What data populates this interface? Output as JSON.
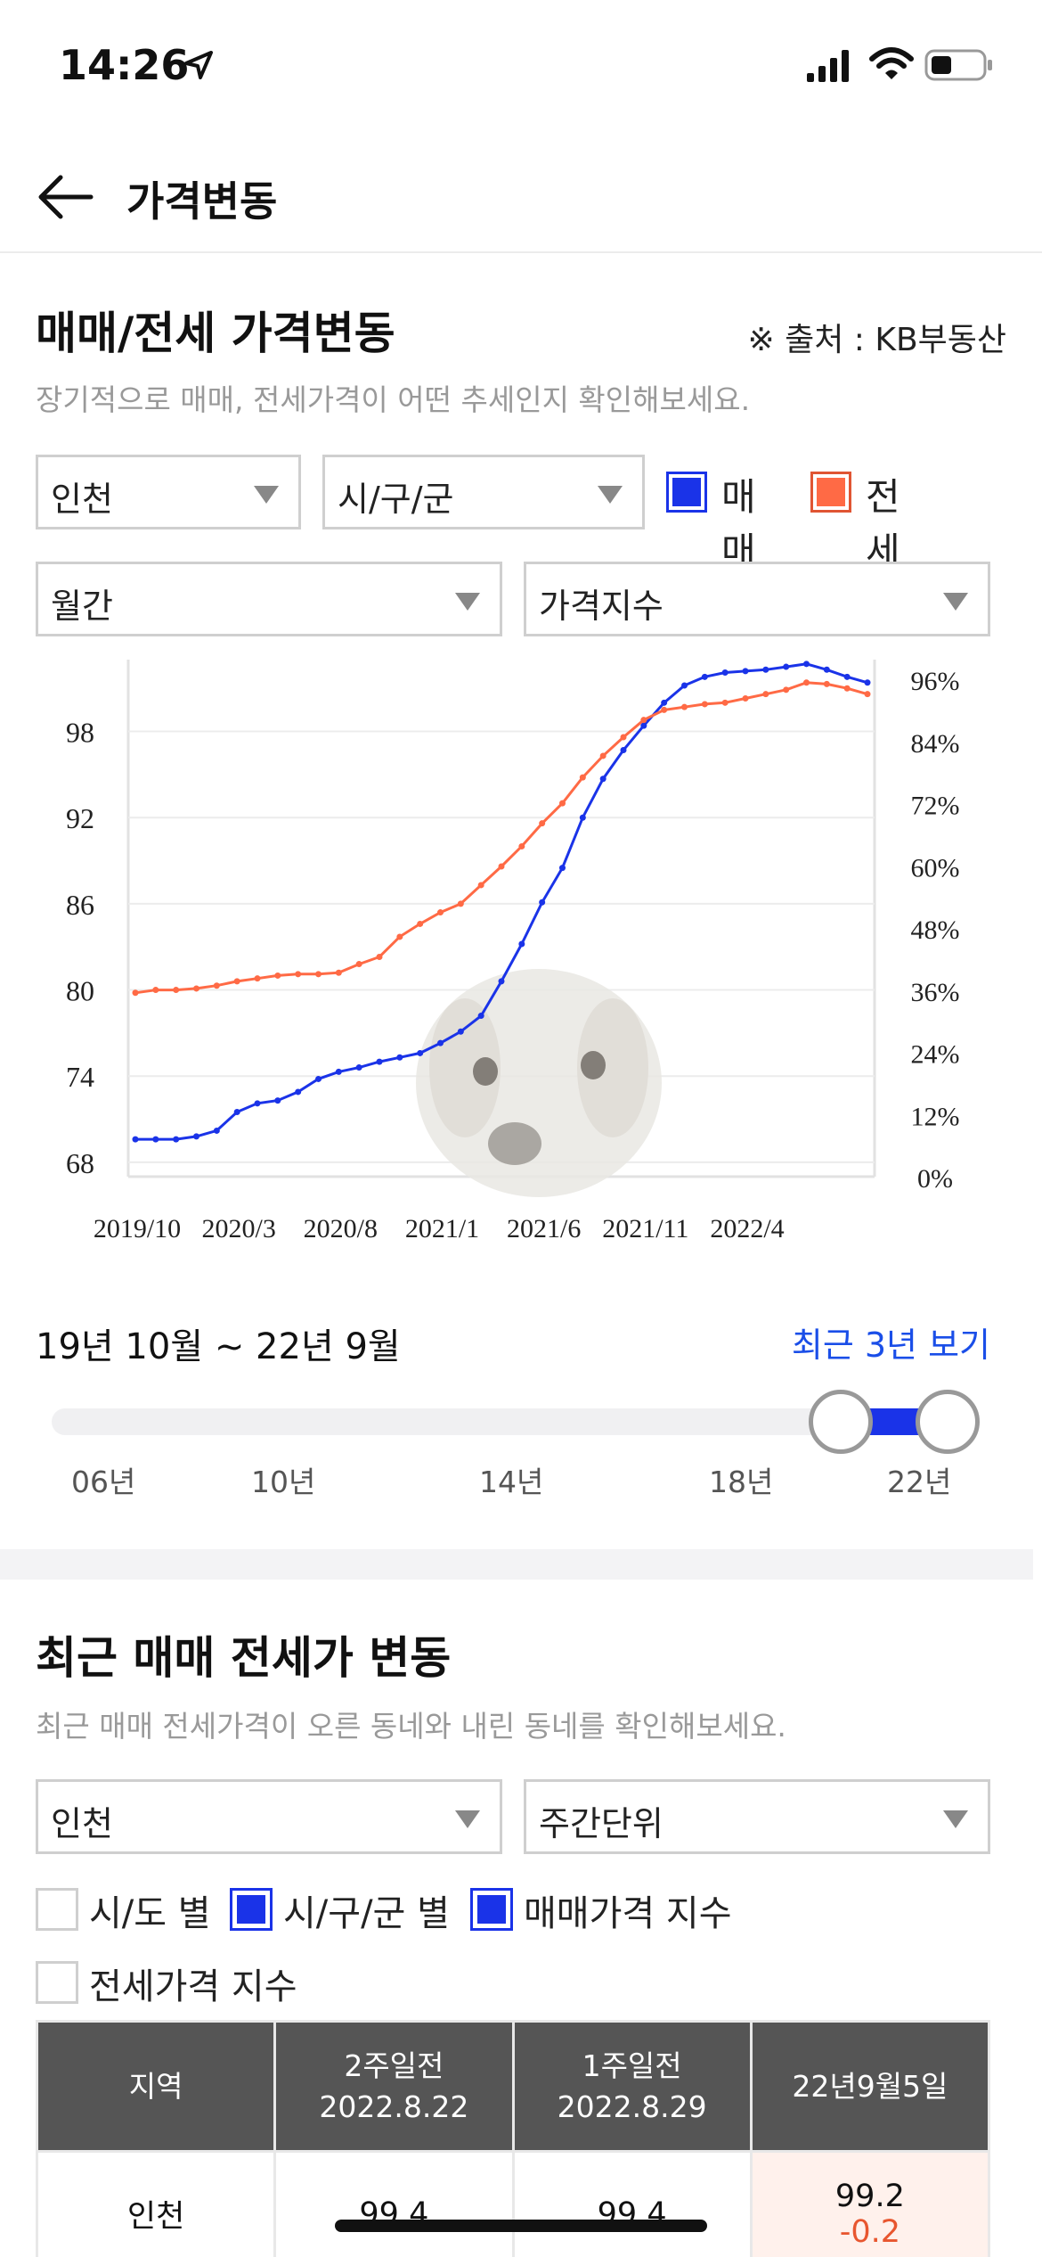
{
  "status": {
    "time": "14:26"
  },
  "header": {
    "title": "가격변동"
  },
  "section1": {
    "title": "매매/전세 가격변동",
    "source": "※ 출처 : KB부동산",
    "desc": "장기적으로 매매, 전세가격이 어떤 추세인지 확인해보세요.",
    "region_select": "인천",
    "district_select": "시/구/군",
    "legend": [
      {
        "label": "매매",
        "color": "#1a33e8"
      },
      {
        "label": "전세",
        "color": "#ff6a45"
      }
    ],
    "period_select": "월간",
    "metric_select": "가격지수",
    "range_label": "19년 10월 ~ 22년 9월",
    "recent_link": "최근 3년 보기",
    "slider_years": [
      "06년",
      "10년",
      "14년",
      "18년",
      "22년"
    ]
  },
  "chart_data": {
    "type": "line",
    "x_tick_labels": [
      "2019/10",
      "2020/3",
      "2020/8",
      "2021/1",
      "2021/6",
      "2021/11",
      "2022/4"
    ],
    "y_left_ticks": [
      "98",
      "92",
      "86",
      "80",
      "74",
      "68"
    ],
    "y_right_ticks": [
      "96%",
      "84%",
      "72%",
      "60%",
      "48%",
      "36%",
      "24%",
      "12%",
      "0%"
    ],
    "ylim": [
      67,
      103
    ],
    "series": [
      {
        "name": "매매",
        "color": "#1a33e8",
        "values": [
          69.6,
          69.6,
          69.6,
          69.8,
          70.2,
          71.5,
          72.1,
          72.3,
          72.9,
          73.8,
          74.3,
          74.6,
          75.0,
          75.3,
          75.6,
          76.3,
          77.1,
          78.2,
          80.6,
          83.2,
          86.1,
          88.5,
          92.0,
          94.7,
          96.7,
          98.4,
          100.0,
          101.2,
          101.8,
          102.1,
          102.2,
          102.3,
          102.5,
          102.7,
          102.3,
          101.8,
          101.4
        ]
      },
      {
        "name": "전세",
        "color": "#ff6a45",
        "values": [
          79.8,
          80.0,
          80.0,
          80.1,
          80.3,
          80.6,
          80.8,
          81.0,
          81.1,
          81.1,
          81.2,
          81.8,
          82.3,
          83.7,
          84.6,
          85.4,
          86.0,
          87.3,
          88.6,
          90.0,
          91.6,
          93.0,
          94.8,
          96.3,
          97.6,
          98.8,
          99.5,
          99.7,
          99.9,
          100.0,
          100.3,
          100.6,
          100.9,
          101.4,
          101.3,
          101.0,
          100.6
        ]
      }
    ]
  },
  "section2": {
    "title": "최근 매매 전세가 변동",
    "desc": "최근 매매 전세가격이 오른 동네와 내린 동네를 확인해보세요.",
    "region_select": "인천",
    "unit_select": "주간단위",
    "checks": [
      {
        "label": "시/도 별",
        "checked": false
      },
      {
        "label": "시/구/군 별",
        "checked": true
      },
      {
        "label": "매매가격 지수",
        "checked": true
      },
      {
        "label": "전세가격 지수",
        "checked": false
      }
    ],
    "table": {
      "headers": [
        {
          "line1": "지역",
          "line2": ""
        },
        {
          "line1": "2주일전",
          "line2": "2022.8.22"
        },
        {
          "line1": "1주일전",
          "line2": "2022.8.29"
        },
        {
          "line1": "22년9월5일",
          "line2": ""
        }
      ],
      "row": {
        "region": "인천",
        "two_weeks": "99.4",
        "one_week": "99.4",
        "current": "99.2",
        "change": "-0.2"
      }
    }
  }
}
